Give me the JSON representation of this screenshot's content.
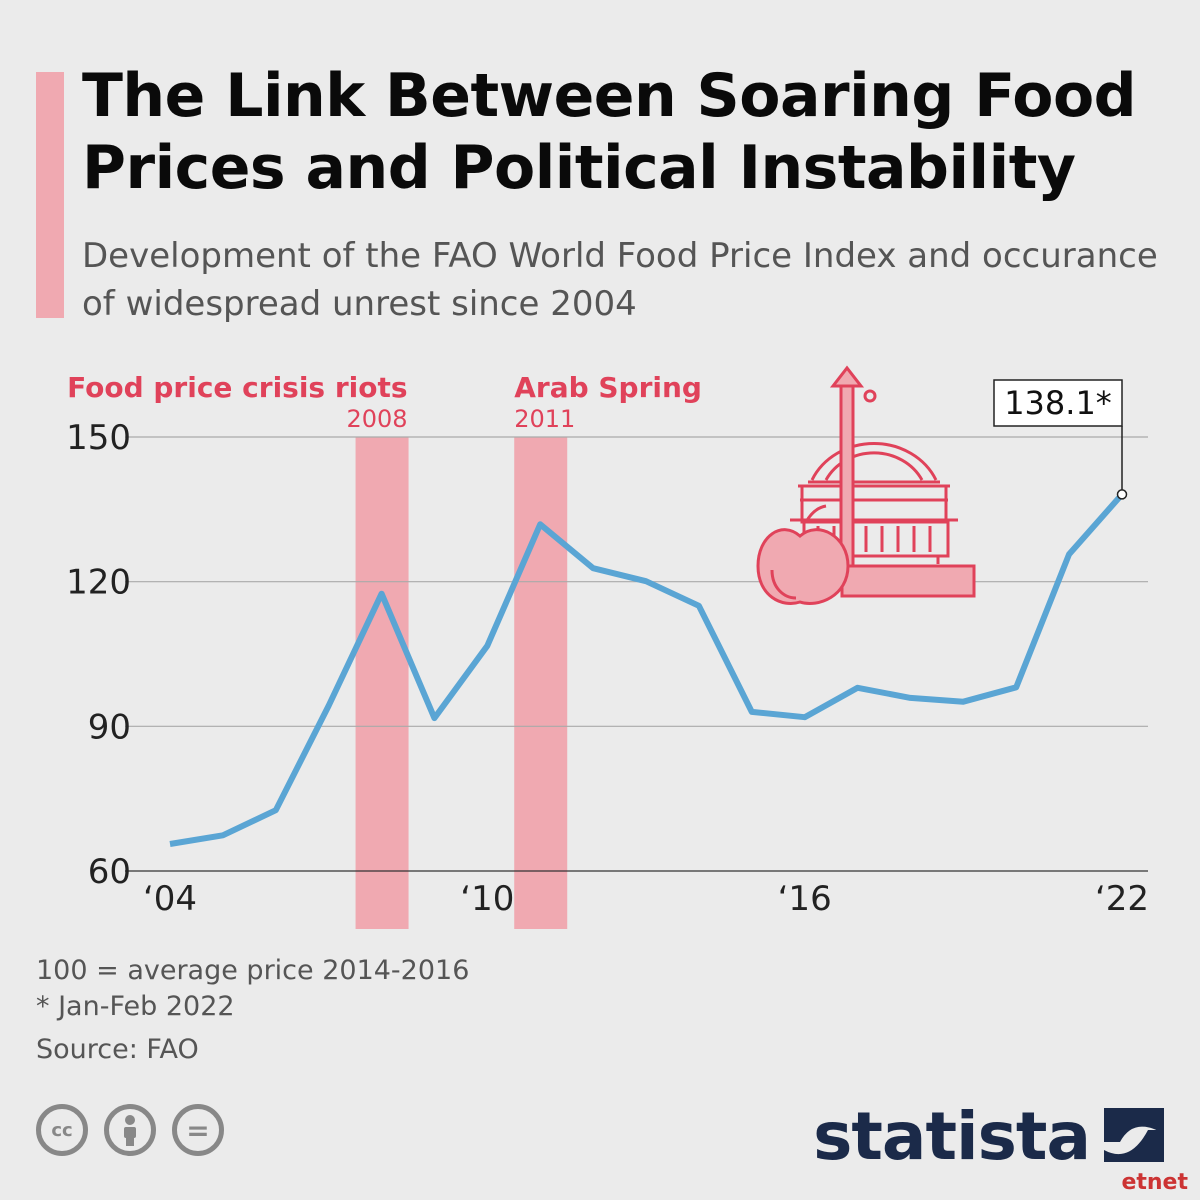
{
  "header": {
    "title": "The Link Between Soaring Food Prices and Political Instability",
    "subtitle": "Development of the FAO World Food Price Index and occurance of widespread unrest since 2004"
  },
  "colors": {
    "accent": "#f0a9b1",
    "line": "#5aa5d4",
    "annotation_text": "#e0425a",
    "brand": "#1b2a49"
  },
  "chart_data": {
    "type": "line",
    "x": [
      2004,
      2005,
      2006,
      2007,
      2008,
      2009,
      2010,
      2011,
      2012,
      2013,
      2014,
      2015,
      2016,
      2017,
      2018,
      2019,
      2020,
      2021,
      2022
    ],
    "series": [
      {
        "values": [
          65.6,
          67.4,
          72.6,
          94.3,
          117.5,
          91.7,
          106.7,
          131.9,
          122.8,
          120.1,
          115.0,
          93.0,
          91.9,
          98.0,
          95.9,
          95.1,
          98.1,
          125.7,
          138.1
        ]
      }
    ],
    "yticks": [
      60,
      90,
      120,
      150
    ],
    "ylim": [
      60,
      150
    ],
    "xlim": [
      2004,
      2022
    ],
    "xtick_values": [
      2004,
      2010,
      2016,
      2022
    ],
    "xtick_labels": [
      "‘04",
      "‘10",
      "‘16",
      "‘22"
    ],
    "grid": "horizontal",
    "highlight_bands": [
      {
        "label": "Food price crisis riots",
        "year": "2008",
        "x": 2008
      },
      {
        "label": "Arab Spring",
        "year": "2011",
        "x": 2011
      }
    ],
    "callout": {
      "text": "138.1*",
      "x": 2022,
      "value": 138.1
    }
  },
  "icons": {
    "illustration": "capitol-apple-rising-arrow-icon",
    "license": [
      "cc-icon",
      "by-icon",
      "nd-icon"
    ],
    "brand_mark": "statista-logo-icon"
  },
  "footer": {
    "note1": "100 = average price 2014-2016",
    "note2": "* Jan-Feb 2022",
    "source": "Source: FAO",
    "cc_label": "cc",
    "nd_label": "=",
    "brand": "statista",
    "watermark": "etnet"
  }
}
